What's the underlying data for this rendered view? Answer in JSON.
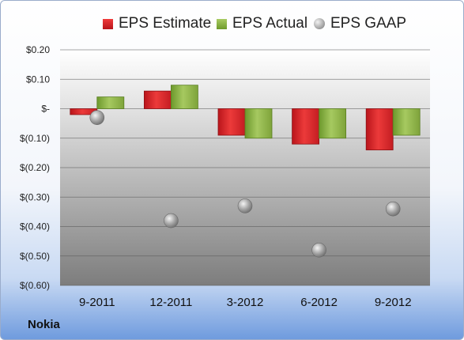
{
  "chart_data": {
    "type": "bar",
    "title": "",
    "categories": [
      "9-2011",
      "12-2011",
      "3-2012",
      "6-2012",
      "9-2012"
    ],
    "series": [
      {
        "name": "EPS Estimate",
        "kind": "bar",
        "color": "#d42222",
        "values": [
          -0.02,
          0.06,
          -0.09,
          -0.12,
          -0.14
        ]
      },
      {
        "name": "EPS Actual",
        "kind": "bar",
        "color": "#8bb044",
        "values": [
          0.04,
          0.08,
          -0.1,
          -0.1,
          -0.09
        ]
      },
      {
        "name": "EPS GAAP",
        "kind": "marker",
        "color": "#a0a0a0",
        "values": [
          -0.03,
          -0.38,
          -0.33,
          -0.48,
          -0.34
        ]
      }
    ],
    "ylim": [
      -0.6,
      0.2
    ],
    "yticks": [
      0.2,
      0.1,
      0.0,
      -0.1,
      -0.2,
      -0.3,
      -0.4,
      -0.5,
      -0.6
    ],
    "ytick_labels": [
      "$0.20",
      "$0.10",
      "$-",
      "$(0.10)",
      "$(0.20)",
      "$(0.30)",
      "$(0.40)",
      "$(0.50)",
      "$(0.60)"
    ],
    "grid": true,
    "legend_position": "top"
  },
  "company": "Nokia"
}
